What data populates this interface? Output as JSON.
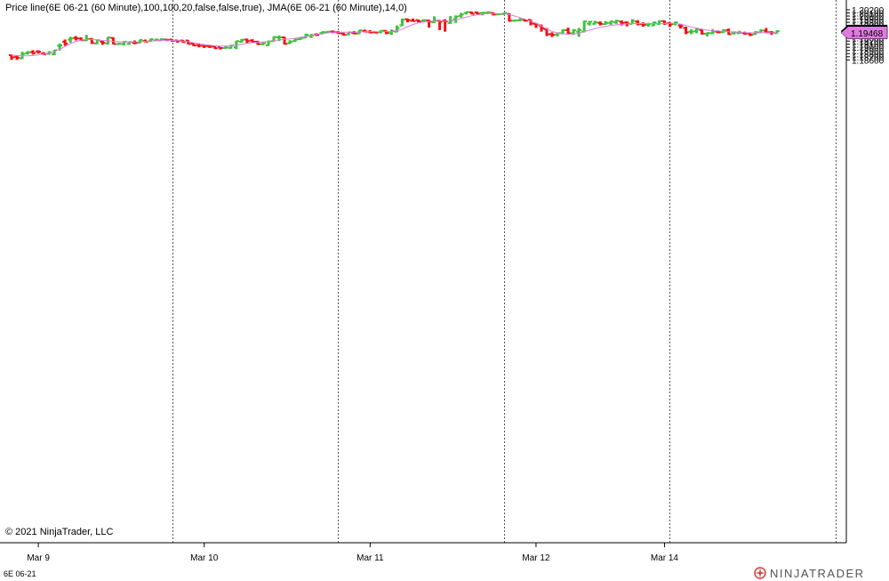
{
  "title": "Price line(6E 06-21 (60 Minute),100,100,20,false,false,true), JMA(6E 06-21 (60 Minute),14,0)",
  "copyright": "© 2021 NinjaTrader, LLC",
  "instrument": "6E 06-21",
  "brand": "NINJATRADER",
  "colors": {
    "up": "#3cc33c",
    "down": "#f01414",
    "jma": "#e07ae0",
    "price_badge": "#000000",
    "jma_badge": "#e07ae0"
  },
  "chart_data": {
    "type": "ohlc-bar",
    "y_ticks": [
      "1.20200",
      "1.20100",
      "1.20000",
      "1.19900",
      "1.19800",
      "1.19700",
      "1.19600",
      "1.19500",
      "1.19400",
      "1.19300",
      "1.19200",
      "1.19100",
      "1.19000",
      "1.18900",
      "1.18800",
      "1.18700",
      "1.18600"
    ],
    "ylim": [
      1.1855,
      1.2023
    ],
    "x_labels": [
      {
        "label": "Mar 9",
        "bar": 5
      },
      {
        "label": "Mar 10",
        "bar": 36
      },
      {
        "label": "Mar 11",
        "bar": 67
      },
      {
        "label": "Mar 12",
        "bar": 98
      },
      {
        "label": "Mar 14",
        "bar": 122
      }
    ],
    "session_breaks": [
      30,
      61,
      92,
      123,
      154
    ],
    "last_price": "1.19515",
    "jma_value": "1.19468",
    "bars": [
      [
        1.1875,
        1.1877,
        1.186,
        1.1868
      ],
      [
        1.187,
        1.1875,
        1.186,
        1.1867
      ],
      [
        1.1865,
        1.1886,
        1.1863,
        1.1879
      ],
      [
        1.1881,
        1.1888,
        1.1877,
        1.1884
      ],
      [
        1.1885,
        1.1891,
        1.1877,
        1.1882
      ],
      [
        1.1887,
        1.1891,
        1.188,
        1.1886
      ],
      [
        1.188,
        1.1885,
        1.1876,
        1.1878
      ],
      [
        1.188,
        1.1888,
        1.1876,
        1.1884
      ],
      [
        1.1878,
        1.1892,
        1.1875,
        1.1891
      ],
      [
        1.1905,
        1.1912,
        1.189,
        1.1906
      ],
      [
        1.1918,
        1.1925,
        1.1905,
        1.1912
      ],
      [
        1.1925,
        1.1934,
        1.1915,
        1.1928
      ],
      [
        1.193,
        1.1936,
        1.1922,
        1.1929
      ],
      [
        1.1928,
        1.1932,
        1.1921,
        1.1923
      ],
      [
        1.1922,
        1.194,
        1.192,
        1.1927
      ],
      [
        1.1927,
        1.193,
        1.1911,
        1.1914
      ],
      [
        1.1912,
        1.1925,
        1.191,
        1.1923
      ],
      [
        1.1918,
        1.1922,
        1.1908,
        1.1915
      ],
      [
        1.1912,
        1.1933,
        1.1909,
        1.1932
      ],
      [
        1.193,
        1.1932,
        1.191,
        1.1911
      ],
      [
        1.191,
        1.1914,
        1.1908,
        1.1912
      ],
      [
        1.191,
        1.192,
        1.1906,
        1.1918
      ],
      [
        1.1911,
        1.1919,
        1.1909,
        1.1917
      ],
      [
        1.1915,
        1.1922,
        1.191,
        1.1914
      ],
      [
        1.1915,
        1.1925,
        1.1913,
        1.1924
      ],
      [
        1.192,
        1.1925,
        1.1916,
        1.1918
      ],
      [
        1.192,
        1.1928,
        1.1918,
        1.1926
      ],
      [
        1.1922,
        1.1928,
        1.192,
        1.1925
      ],
      [
        1.1922,
        1.1929,
        1.1921,
        1.1926
      ],
      [
        1.1925,
        1.1927,
        1.192,
        1.1924
      ],
      [
        1.1925,
        1.1926,
        1.1918,
        1.1921
      ],
      [
        1.1922,
        1.1924,
        1.1915,
        1.192
      ],
      [
        1.1922,
        1.1924,
        1.1915,
        1.1917
      ],
      [
        1.1922,
        1.1923,
        1.191,
        1.1911
      ],
      [
        1.1912,
        1.1913,
        1.1904,
        1.1906
      ],
      [
        1.1908,
        1.1911,
        1.19,
        1.1905
      ],
      [
        1.1905,
        1.1907,
        1.1898,
        1.1904
      ],
      [
        1.1904,
        1.1906,
        1.1898,
        1.1902
      ],
      [
        1.1903,
        1.1904,
        1.1895,
        1.1897
      ],
      [
        1.19,
        1.1901,
        1.1893,
        1.1898
      ],
      [
        1.1898,
        1.1904,
        1.1895,
        1.19
      ],
      [
        1.1898,
        1.1908,
        1.1896,
        1.1906
      ],
      [
        1.19,
        1.1921,
        1.1894,
        1.192
      ],
      [
        1.1918,
        1.1927,
        1.1915,
        1.1924
      ],
      [
        1.1925,
        1.1928,
        1.1912,
        1.192
      ],
      [
        1.1922,
        1.1926,
        1.1915,
        1.1918
      ],
      [
        1.1918,
        1.1921,
        1.1908,
        1.191
      ],
      [
        1.191,
        1.1916,
        1.1907,
        1.1913
      ],
      [
        1.1906,
        1.1922,
        1.1905,
        1.1919
      ],
      [
        1.192,
        1.1935,
        1.1918,
        1.1933
      ],
      [
        1.1932,
        1.1938,
        1.192,
        1.1932
      ],
      [
        1.1932,
        1.1934,
        1.1909,
        1.1911
      ],
      [
        1.1913,
        1.1923,
        1.1911,
        1.1918
      ],
      [
        1.192,
        1.1929,
        1.1918,
        1.1925
      ],
      [
        1.1926,
        1.1933,
        1.1924,
        1.193
      ],
      [
        1.1931,
        1.1944,
        1.193,
        1.194
      ],
      [
        1.1936,
        1.1943,
        1.193,
        1.1938
      ],
      [
        1.1941,
        1.1945,
        1.1936,
        1.194
      ],
      [
        1.1945,
        1.195,
        1.1941,
        1.1949
      ],
      [
        1.1948,
        1.1952,
        1.1945,
        1.195
      ],
      [
        1.195,
        1.1954,
        1.1945,
        1.1949
      ],
      [
        1.1948,
        1.1952,
        1.1943,
        1.1945
      ],
      [
        1.1944,
        1.1947,
        1.1938,
        1.194
      ],
      [
        1.1941,
        1.195,
        1.1939,
        1.1948
      ],
      [
        1.1946,
        1.1952,
        1.1942,
        1.1944
      ],
      [
        1.1944,
        1.1956,
        1.1943,
        1.1955
      ],
      [
        1.1952,
        1.1957,
        1.1948,
        1.195
      ],
      [
        1.195,
        1.1955,
        1.1945,
        1.1947
      ],
      [
        1.1948,
        1.1951,
        1.1945,
        1.1947
      ],
      [
        1.1948,
        1.1955,
        1.1945,
        1.1953
      ],
      [
        1.1953,
        1.1954,
        1.1942,
        1.1946
      ],
      [
        1.1945,
        1.1957,
        1.194,
        1.1952
      ],
      [
        1.195,
        1.197,
        1.1948,
        1.1962
      ],
      [
        1.197,
        1.1992,
        1.1968,
        1.1988
      ],
      [
        1.199,
        1.1992,
        1.198,
        1.1987
      ],
      [
        1.1985,
        1.1992,
        1.1982,
        1.1984
      ],
      [
        1.1987,
        1.1989,
        1.198,
        1.1983
      ],
      [
        1.1985,
        1.199,
        1.198,
        1.1987
      ],
      [
        1.1986,
        1.1988,
        1.1963,
        1.1982
      ],
      [
        1.198,
        1.1999,
        1.1978,
        1.1985
      ],
      [
        1.1985,
        1.1987,
        1.1955,
        1.1982
      ],
      [
        1.1985,
        1.199,
        1.195,
        1.1983
      ],
      [
        1.1978,
        1.2,
        1.1975,
        1.1985
      ],
      [
        1.199,
        1.2002,
        1.1978,
        1.1998
      ],
      [
        1.2,
        1.201,
        1.1995,
        1.2005
      ],
      [
        1.201,
        1.2014,
        1.2005,
        1.2013
      ],
      [
        1.2012,
        1.2014,
        1.2005,
        1.2007
      ],
      [
        1.2012,
        1.2014,
        1.2006,
        1.2008
      ],
      [
        1.201,
        1.2012,
        1.2002,
        1.2011
      ],
      [
        1.201,
        1.2015,
        1.2008,
        1.2012
      ],
      [
        1.201,
        1.2012,
        1.2002,
        1.2005
      ],
      [
        1.2005,
        1.2008,
        1.2003,
        1.2006
      ],
      [
        1.2007,
        1.2011,
        1.2003,
        1.201
      ],
      [
        1.2007,
        1.2009,
        1.1982,
        1.1985
      ],
      [
        1.1985,
        1.1988,
        1.1982,
        1.1986
      ],
      [
        1.1986,
        1.1993,
        1.1983,
        1.1988
      ],
      [
        1.1987,
        1.1989,
        1.1982,
        1.1985
      ],
      [
        1.1988,
        1.1989,
        1.197,
        1.1976
      ],
      [
        1.1975,
        1.1978,
        1.1962,
        1.1973
      ],
      [
        1.197,
        1.1973,
        1.195,
        1.196
      ],
      [
        1.1958,
        1.1962,
        1.1936,
        1.1942
      ],
      [
        1.1942,
        1.1948,
        1.1933,
        1.194
      ],
      [
        1.194,
        1.1946,
        1.1935,
        1.1945
      ],
      [
        1.1945,
        1.1958,
        1.1943,
        1.1955
      ],
      [
        1.1955,
        1.1963,
        1.1942,
        1.1945
      ],
      [
        1.1945,
        1.1958,
        1.194,
        1.1955
      ],
      [
        1.195,
        1.1962,
        1.1934,
        1.1955
      ],
      [
        1.195,
        1.1985,
        1.1948,
        1.1983
      ],
      [
        1.1976,
        1.1984,
        1.197,
        1.1982
      ],
      [
        1.1975,
        1.1985,
        1.1973,
        1.198
      ],
      [
        1.1978,
        1.1983,
        1.197,
        1.1975
      ],
      [
        1.1974,
        1.1984,
        1.1972,
        1.1978
      ],
      [
        1.1978,
        1.1985,
        1.1972,
        1.1983
      ],
      [
        1.198,
        1.1988,
        1.1975,
        1.1985
      ],
      [
        1.1982,
        1.1986,
        1.197,
        1.1978
      ],
      [
        1.198,
        1.1983,
        1.1967,
        1.1976
      ],
      [
        1.1975,
        1.199,
        1.1974,
        1.1985
      ],
      [
        1.1982,
        1.1987,
        1.197,
        1.1975
      ],
      [
        1.1974,
        1.198,
        1.1966,
        1.1972
      ],
      [
        1.1972,
        1.1978,
        1.1966,
        1.1975
      ],
      [
        1.197,
        1.1982,
        1.1968,
        1.198
      ],
      [
        1.1975,
        1.1986,
        1.1972,
        1.1984
      ],
      [
        1.1984,
        1.1986,
        1.1972,
        1.1976
      ],
      [
        1.1978,
        1.198,
        1.1965,
        1.1973
      ],
      [
        1.1975,
        1.1982,
        1.197,
        1.198
      ],
      [
        1.197,
        1.1975,
        1.196,
        1.1968
      ],
      [
        1.1962,
        1.1966,
        1.1942,
        1.1948
      ],
      [
        1.195,
        1.1958,
        1.1942,
        1.195
      ],
      [
        1.1952,
        1.1963,
        1.1945,
        1.1958
      ],
      [
        1.1955,
        1.1957,
        1.1941,
        1.1944
      ],
      [
        1.1943,
        1.1948,
        1.1935,
        1.1946
      ],
      [
        1.1945,
        1.1958,
        1.1942,
        1.195
      ],
      [
        1.195,
        1.1954,
        1.1945,
        1.1948
      ],
      [
        1.1948,
        1.1958,
        1.1946,
        1.1955
      ],
      [
        1.1955,
        1.196,
        1.194,
        1.1942
      ],
      [
        1.1945,
        1.1951,
        1.1941,
        1.1948
      ],
      [
        1.1945,
        1.1953,
        1.1943,
        1.1947
      ],
      [
        1.1946,
        1.195,
        1.194,
        1.1944
      ],
      [
        1.1944,
        1.1948,
        1.1936,
        1.194
      ],
      [
        1.1942,
        1.1952,
        1.194,
        1.1948
      ],
      [
        1.1948,
        1.1958,
        1.1946,
        1.1954
      ],
      [
        1.1953,
        1.1962,
        1.1945,
        1.1948
      ],
      [
        1.1948,
        1.1952,
        1.194,
        1.1947
      ],
      [
        1.1945,
        1.1954,
        1.1944,
        1.1952
      ]
    ],
    "jma": [
      1.1875,
      1.1874,
      1.1873,
      1.1873,
      1.1874,
      1.1876,
      1.1879,
      1.1882,
      1.1887,
      1.1894,
      1.1903,
      1.1912,
      1.1919,
      1.1923,
      1.1925,
      1.1925,
      1.1924,
      1.1922,
      1.1921,
      1.1919,
      1.1918,
      1.1917,
      1.1917,
      1.1917,
      1.1918,
      1.1919,
      1.192,
      1.1921,
      1.1922,
      1.1923,
      1.1922,
      1.1921,
      1.192,
      1.1918,
      1.1915,
      1.1912,
      1.1909,
      1.1907,
      1.1905,
      1.1904,
      1.1904,
      1.1905,
      1.1907,
      1.191,
      1.1913,
      1.1915,
      1.1916,
      1.1917,
      1.1919,
      1.1921,
      1.1924,
      1.1926,
      1.1927,
      1.1929,
      1.1932,
      1.1935,
      1.1938,
      1.1941,
      1.1944,
      1.1946,
      1.1948,
      1.1948,
      1.1948,
      1.1948,
      1.1948,
      1.1949,
      1.195,
      1.195,
      1.195,
      1.195,
      1.195,
      1.1951,
      1.1953,
      1.1958,
      1.1966,
      1.1973,
      1.1978,
      1.1981,
      1.1983,
      1.1984,
      1.1984,
      1.1984,
      1.1985,
      1.1988,
      1.1992,
      1.1997,
      1.2001,
      1.2004,
      1.2006,
      1.2008,
      1.2008,
      1.2008,
      1.2008,
      1.2005,
      1.2,
      1.1995,
      1.199,
      1.1984,
      1.1977,
      1.1968,
      1.1959,
      1.1951,
      1.1946,
      1.1943,
      1.1942,
      1.1943,
      1.1945,
      1.195,
      1.1955,
      1.196,
      1.1964,
      1.1967,
      1.197,
      1.1972,
      1.1974,
      1.1975,
      1.1976,
      1.1976,
      1.1976,
      1.1976,
      1.1976,
      1.1976,
      1.1976,
      1.1977,
      1.1976,
      1.1974,
      1.197,
      1.1965,
      1.1961,
      1.1958,
      1.1955,
      1.1953,
      1.1952,
      1.1951,
      1.195,
      1.1949,
      1.1948,
      1.1947,
      1.1946,
      1.1946,
      1.1947,
      1.1947,
      1.1947,
      1.1946
    ]
  }
}
